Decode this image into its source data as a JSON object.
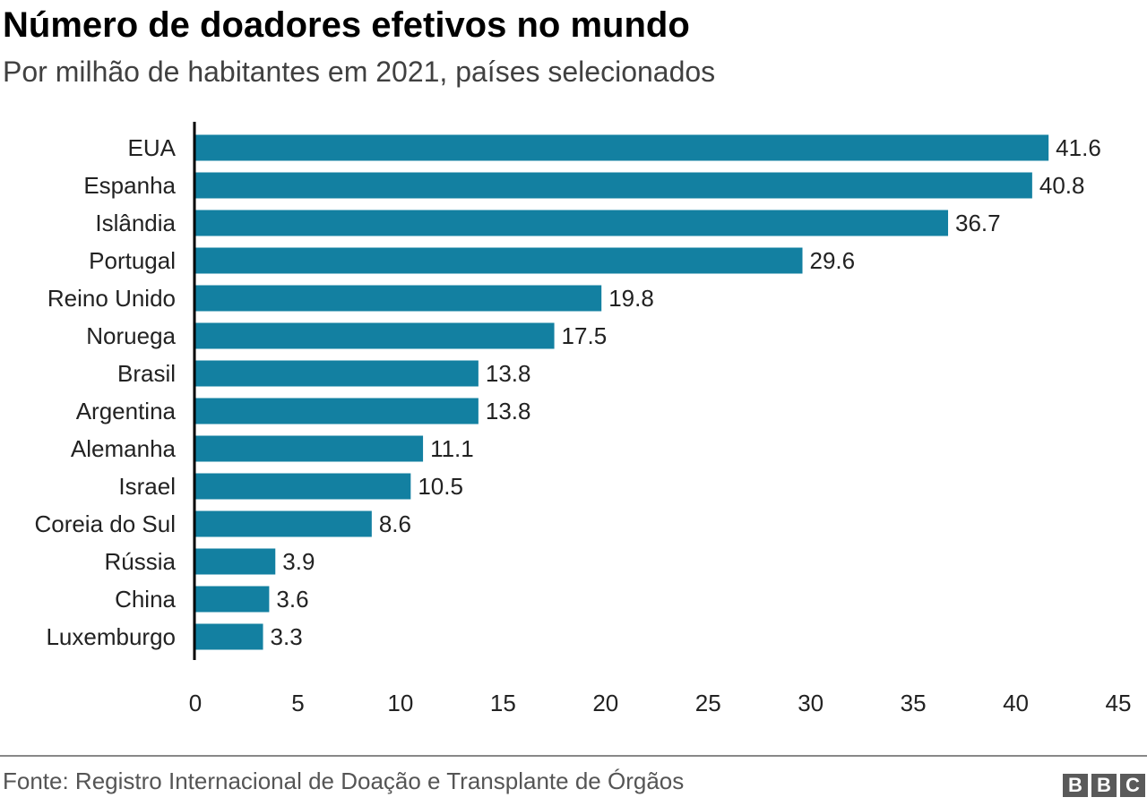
{
  "header": {
    "title": "Número de doadores efetivos no mundo",
    "subtitle": "Por milhão de habitantes em 2021, países selecionados"
  },
  "footer": {
    "source": "Fonte: Registro Internacional de Doação e Transplante de Órgãos",
    "logo": "BBC"
  },
  "chart_data": {
    "type": "bar",
    "orientation": "horizontal",
    "categories": [
      "EUA",
      "Espanha",
      "Islândia",
      "Portugal",
      "Reino Unido",
      "Noruega",
      "Brasil",
      "Argentina",
      "Alemanha",
      "Israel",
      "Coreia do Sul",
      "Rússia",
      "China",
      "Luxemburgo"
    ],
    "values": [
      41.6,
      40.8,
      36.7,
      29.6,
      19.8,
      17.5,
      13.8,
      13.8,
      11.1,
      10.5,
      8.6,
      3.9,
      3.6,
      3.3
    ],
    "data_labels": [
      "41.6",
      "40.8",
      "36.7",
      "29.6",
      "19.8",
      "17.5",
      "13.8",
      "13.8",
      "11.1",
      "10.5",
      "8.6",
      "3.9",
      "3.6",
      "3.3"
    ],
    "xlim": [
      0,
      45
    ],
    "xticks": [
      0,
      5,
      10,
      15,
      20,
      25,
      30,
      35,
      40,
      45
    ],
    "grid": false,
    "bar_color": "#1380a1"
  }
}
